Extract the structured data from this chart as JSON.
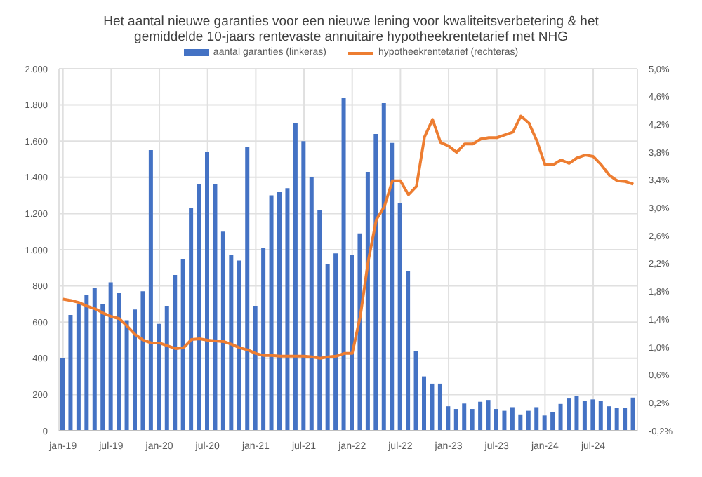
{
  "chart_data": {
    "type": "bar",
    "title": "Het aantal nieuwe garanties voor een nieuwe lening voor kwaliteitsverbetering & het gemiddelde 10-jaars rentevaste annuitaire hypotheekrentetarief met NHG",
    "categories": [
      "jan-19",
      null,
      null,
      null,
      null,
      null,
      "jul-19",
      null,
      null,
      null,
      null,
      null,
      "jan-20",
      null,
      null,
      null,
      null,
      null,
      "jul-20",
      null,
      null,
      null,
      null,
      null,
      "jan-21",
      null,
      null,
      null,
      null,
      null,
      "jul-21",
      null,
      null,
      null,
      null,
      null,
      "jan-22",
      null,
      null,
      null,
      null,
      null,
      "jul-22",
      null,
      null,
      null,
      null,
      null,
      "jan-23",
      null,
      null,
      null,
      null,
      null,
      "jul-23",
      null,
      null,
      null,
      null,
      null,
      "jan-24",
      null,
      null,
      null,
      null,
      null,
      "jul-24",
      null,
      null,
      null,
      null,
      null
    ],
    "series": [
      {
        "name": "aantal garanties (linkeras)",
        "color": "#4472c4",
        "values": [
          400,
          640,
          700,
          750,
          790,
          700,
          820,
          760,
          610,
          670,
          770,
          1550,
          590,
          690,
          860,
          950,
          1230,
          1360,
          1540,
          1360,
          1100,
          970,
          940,
          1570,
          690,
          1010,
          1300,
          1320,
          1340,
          1700,
          1600,
          1400,
          1220,
          920,
          980,
          1840,
          970,
          1090,
          1430,
          1640,
          1810,
          1590,
          1260,
          880,
          440,
          300,
          260,
          260,
          135,
          120,
          150,
          120,
          160,
          170,
          120,
          110,
          130,
          90,
          110,
          130,
          84,
          102,
          148,
          178,
          193,
          165,
          173,
          165,
          135,
          127,
          127,
          183
        ]
      },
      {
        "name": "hypotheekrentetarief (rechteras)",
        "type": "line",
        "axis": "y2",
        "color": "#ed7d31",
        "values": [
          1.69,
          1.67,
          1.64,
          1.59,
          1.55,
          1.49,
          1.44,
          1.41,
          1.3,
          1.18,
          1.1,
          1.06,
          1.06,
          1.02,
          0.98,
          0.99,
          1.11,
          1.12,
          1.1,
          1.09,
          1.08,
          1.04,
          0.99,
          0.96,
          0.91,
          0.88,
          0.88,
          0.87,
          0.87,
          0.87,
          0.87,
          0.86,
          0.84,
          0.86,
          0.87,
          0.91,
          0.91,
          1.44,
          2.24,
          2.83,
          3.02,
          3.39,
          3.39,
          3.19,
          3.31,
          4.02,
          4.27,
          3.94,
          3.89,
          3.8,
          3.92,
          3.92,
          3.99,
          4.01,
          4.01,
          4.05,
          4.09,
          4.32,
          4.22,
          3.96,
          3.62,
          3.62,
          3.69,
          3.64,
          3.72,
          3.76,
          3.74,
          3.62,
          3.47,
          3.39,
          3.38,
          3.34
        ]
      }
    ],
    "ylim": [
      0,
      2000
    ],
    "yticks": [
      0,
      200,
      400,
      600,
      800,
      {
        "value": 1000,
        "label": "1.000"
      },
      {
        "value": 1200,
        "label": "1.200"
      },
      {
        "value": 1400,
        "label": "1.400"
      },
      {
        "value": 1600,
        "label": "1.600"
      },
      {
        "value": 1800,
        "label": "1.800"
      },
      {
        "value": 2000,
        "label": "2.000"
      }
    ],
    "y2lim": [
      -0.2,
      5.0
    ],
    "y2ticks": [
      {
        "value": -0.2,
        "label": "-0,2%"
      },
      {
        "value": 0.2,
        "label": "0,2%"
      },
      {
        "value": 0.6,
        "label": "0,6%"
      },
      {
        "value": 1.0,
        "label": "1,0%"
      },
      {
        "value": 1.4,
        "label": "1,4%"
      },
      {
        "value": 1.8,
        "label": "1,8%"
      },
      {
        "value": 2.2,
        "label": "2,2%"
      },
      {
        "value": 2.6,
        "label": "2,6%"
      },
      {
        "value": 3.0,
        "label": "3,0%"
      },
      {
        "value": 3.4,
        "label": "3,4%"
      },
      {
        "value": 3.8,
        "label": "3,8%"
      },
      {
        "value": 4.2,
        "label": "4,2%"
      },
      {
        "value": 4.6,
        "label": "4,6%"
      },
      {
        "value": 5.0,
        "label": "5,0%"
      }
    ],
    "grid": true,
    "legend": "top"
  }
}
